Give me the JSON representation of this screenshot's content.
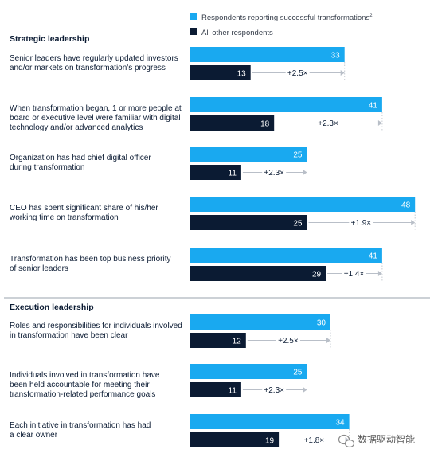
{
  "chart_data": {
    "type": "bar",
    "orientation": "horizontal",
    "series": [
      {
        "name": "Respondents reporting successful transformations",
        "superscript": "2",
        "color": "#19a9f0"
      },
      {
        "name": "All other respondents",
        "color": "#0b1b33"
      }
    ],
    "sections": [
      {
        "title": "Strategic leadership",
        "items": [
          {
            "label": [
              "Senior leaders have regularly updated investors",
              "and/or markets on transformation's progress"
            ],
            "success": 33,
            "other": 13,
            "multiplier": "+2.5×"
          },
          {
            "label": [
              "When transformation began, 1 or more people at",
              "board or executive level were familiar with digital",
              "technology and/or advanced analytics"
            ],
            "success": 41,
            "other": 18,
            "multiplier": "+2.3×"
          },
          {
            "label": [
              "Organization has had chief digital officer",
              "during transformation"
            ],
            "success": 25,
            "other": 11,
            "multiplier": "+2.3×"
          },
          {
            "label": [
              "CEO has spent significant share of his/her",
              "working time on transformation"
            ],
            "success": 48,
            "other": 25,
            "multiplier": "+1.9×"
          },
          {
            "label": [
              "Transformation has been top business priority",
              "of senior leaders"
            ],
            "success": 41,
            "other": 29,
            "multiplier": "+1.4×"
          }
        ]
      },
      {
        "title": "Execution leadership",
        "items": [
          {
            "label": [
              "Roles and responsibilities for individuals involved",
              "in transformation have been clear"
            ],
            "success": 30,
            "other": 12,
            "multiplier": "+2.5×"
          },
          {
            "label": [
              "Individuals involved in transformation have",
              "been held accountable for meeting their",
              "transformation-related performance goals"
            ],
            "success": 25,
            "other": 11,
            "multiplier": "+2.3×"
          },
          {
            "label": [
              "Each initiative in transformation has had",
              "a clear owner"
            ],
            "success": 34,
            "other": 19,
            "multiplier": "+1.8×"
          }
        ]
      }
    ],
    "xlim": [
      0,
      48
    ]
  },
  "watermark": {
    "text": "数据驱动智能",
    "icon": "wechat-icon"
  }
}
